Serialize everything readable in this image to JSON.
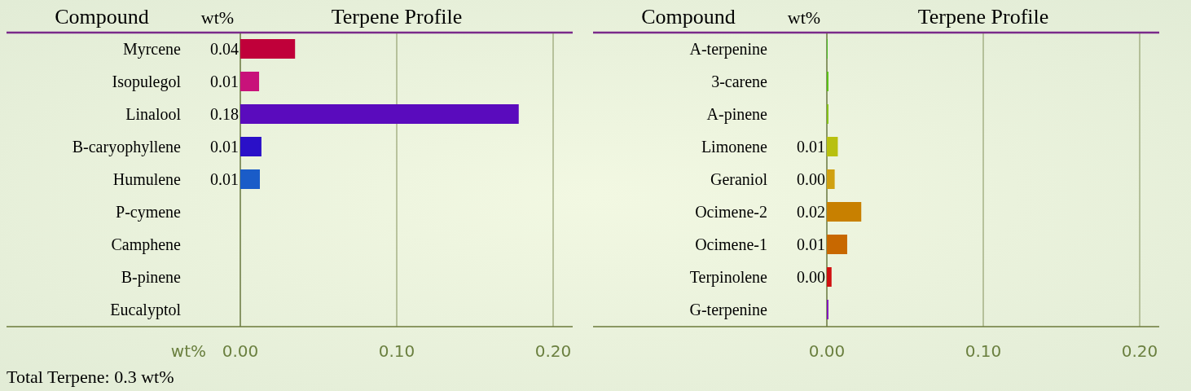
{
  "chart_data": [
    {
      "type": "bar",
      "orientation": "horizontal",
      "title": "Terpene Profile",
      "ylabel": "Compound",
      "xlabel": "wt%",
      "categories": [
        "Myrcene",
        "Isopulegol",
        "Linalool",
        "B-caryophyllene",
        "Humulene",
        "P-cymene",
        "Camphene",
        "B-pinene",
        "Eucalyptol"
      ],
      "values": [
        0.035,
        0.012,
        0.178,
        0.0135,
        0.0125,
        0,
        0,
        0,
        0
      ],
      "colors": [
        "#c0003a",
        "#c8127a",
        "#5a0bbd",
        "#2a10c8",
        "#1a5cc8",
        "#1a8cc8",
        "#10a8b0",
        "#10b080",
        "#20b040"
      ],
      "value_labels": [
        "0.04",
        "0.01",
        "0.18",
        "0.01",
        "0.01",
        null,
        null,
        null,
        null
      ],
      "xlim": [
        0,
        0.2125
      ],
      "xticks": [
        {
          "value": 0,
          "label": "0.00"
        },
        {
          "value": 0.1,
          "label": "0.10"
        },
        {
          "value": 0.2,
          "label": "0.20"
        }
      ],
      "grid": "x",
      "annotations": [
        "wt%",
        "Total Terpene: 0.3 wt%"
      ]
    },
    {
      "type": "bar",
      "orientation": "horizontal",
      "title": "Terpene Profile",
      "ylabel": "Compound",
      "categories": [
        "A-terpenine",
        "3-carene",
        "A-pinene",
        "Limonene",
        "Geraniol",
        "Ocimene-2",
        "Ocimene-1",
        "Terpinolene",
        "G-terpenine"
      ],
      "values": [
        0.0005,
        0.001,
        0.001,
        0.007,
        0.005,
        0.022,
        0.013,
        0.003,
        0.001
      ],
      "colors": [
        "#44c020",
        "#55c010",
        "#80c010",
        "#b8c010",
        "#d0a010",
        "#c88000",
        "#c86800",
        "#d01010",
        "#8010c0"
      ],
      "value_labels": [
        null,
        null,
        null,
        "0.01",
        "0.00",
        "0.02",
        "0.01",
        "0.00",
        null
      ],
      "xlim": [
        0,
        0.2125
      ],
      "xticks": [
        {
          "value": 0,
          "label": "0.00"
        },
        {
          "value": 0.1,
          "label": "0.10"
        },
        {
          "value": 0.2,
          "label": "0.20"
        }
      ],
      "grid": "x",
      "annotations": [
        "wt%"
      ]
    }
  ]
}
